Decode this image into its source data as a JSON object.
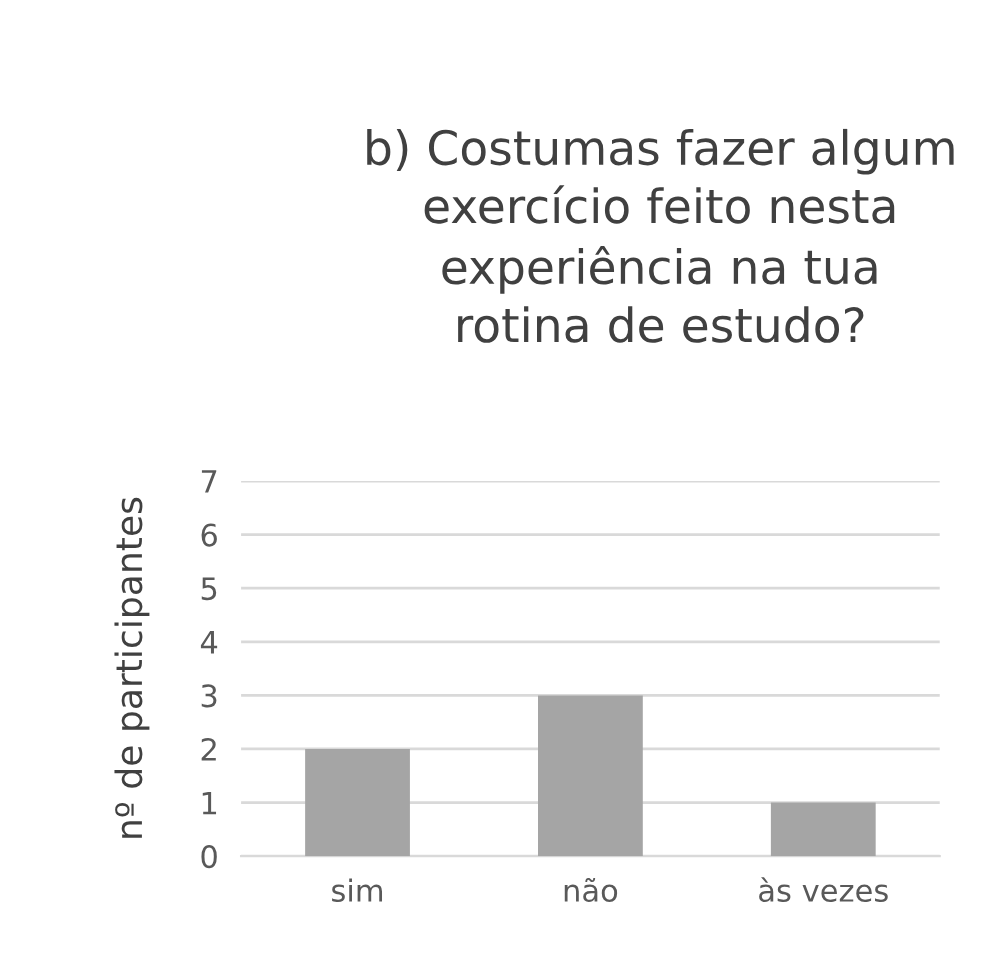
{
  "chart_data": {
    "type": "bar",
    "title": "b) Costumas fazer algum\nexercício feito nesta\nexperiência na tua\nrotina de estudo?",
    "ylabel": "nº de participantes",
    "categories": [
      "sim",
      "não",
      "às vezes"
    ],
    "values": [
      2,
      3,
      1
    ],
    "color": "#a5a5a5",
    "ylim": [
      0,
      7
    ],
    "yticks": [
      0,
      1,
      2,
      3,
      4,
      5,
      6,
      7
    ],
    "grid": "y"
  }
}
